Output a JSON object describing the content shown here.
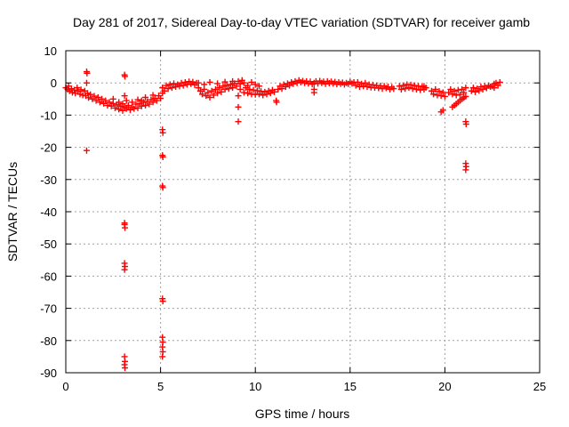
{
  "chart_data": {
    "type": "scatter",
    "title": "Day 281 of 2017, Sidereal Day-to-day VTEC variation (SDTVAR) for receiver gamb",
    "xlabel": "GPS time / hours",
    "ylabel": "SDTVAR / TECUs",
    "xlim": [
      0,
      25
    ],
    "ylim": [
      -90,
      10
    ],
    "xticks": [
      0,
      5,
      10,
      15,
      20,
      25
    ],
    "yticks": [
      10,
      0,
      -10,
      -20,
      -30,
      -40,
      -50,
      -60,
      -70,
      -80,
      -90
    ],
    "xtick_labels": [
      "0",
      "5",
      "10",
      "15",
      "20",
      "25"
    ],
    "ytick_labels": [
      "10",
      "0",
      "-10",
      "-20",
      "-30",
      "-40",
      "-50",
      "-60",
      "-70",
      "-80",
      "-90"
    ],
    "grid": true,
    "marker": "+",
    "color": "#ff0000",
    "series": [
      {
        "name": "SDTVAR",
        "points": [
          [
            0.0,
            -1.5
          ],
          [
            0.1,
            -2.0
          ],
          [
            0.15,
            -1.0
          ],
          [
            0.2,
            -2.5
          ],
          [
            0.3,
            -1.8
          ],
          [
            0.35,
            -3.0
          ],
          [
            0.45,
            -2.2
          ],
          [
            0.5,
            -3.2
          ],
          [
            0.6,
            -1.5
          ],
          [
            0.65,
            -2.6
          ],
          [
            0.75,
            -3.5
          ],
          [
            0.8,
            -2.1
          ],
          [
            0.9,
            -3.8
          ],
          [
            1.0,
            -2.5
          ],
          [
            1.05,
            -4.0
          ],
          [
            1.15,
            -3.2
          ],
          [
            1.2,
            -4.6
          ],
          [
            1.3,
            -3.6
          ],
          [
            1.4,
            -5.0
          ],
          [
            1.5,
            -4.1
          ],
          [
            1.6,
            -5.5
          ],
          [
            1.7,
            -4.5
          ],
          [
            1.8,
            -6.0
          ],
          [
            1.9,
            -5.0
          ],
          [
            2.0,
            -6.4
          ],
          [
            2.1,
            -5.5
          ],
          [
            2.2,
            -7.0
          ],
          [
            2.3,
            -6.0
          ],
          [
            2.4,
            -7.2
          ],
          [
            2.5,
            -6.4
          ],
          [
            2.6,
            -7.8
          ],
          [
            2.7,
            -6.8
          ],
          [
            2.8,
            -8.2
          ],
          [
            2.9,
            -7.2
          ],
          [
            3.0,
            -8.6
          ],
          [
            3.1,
            -7.5
          ],
          [
            3.2,
            -8.0
          ],
          [
            3.3,
            -7.0
          ],
          [
            3.4,
            -8.4
          ],
          [
            3.5,
            -7.5
          ],
          [
            3.6,
            -8.0
          ],
          [
            3.7,
            -6.6
          ],
          [
            3.8,
            -7.8
          ],
          [
            3.9,
            -6.5
          ],
          [
            4.0,
            -7.2
          ],
          [
            4.1,
            -6.0
          ],
          [
            4.2,
            -7.0
          ],
          [
            4.3,
            -5.8
          ],
          [
            4.4,
            -6.6
          ],
          [
            4.5,
            -5.2
          ],
          [
            4.6,
            -6.0
          ],
          [
            4.7,
            -4.8
          ],
          [
            4.8,
            -5.5
          ],
          [
            4.9,
            -4.0
          ],
          [
            5.0,
            -4.8
          ],
          [
            5.1,
            -3.2
          ],
          [
            2.5,
            -5.0
          ],
          [
            2.8,
            -6.0
          ],
          [
            3.2,
            -5.5
          ],
          [
            3.5,
            -6.0
          ],
          [
            3.8,
            -5.2
          ],
          [
            4.2,
            -4.5
          ],
          [
            4.6,
            -3.8
          ],
          [
            4.0,
            -5.5
          ],
          [
            3.0,
            -6.5
          ],
          [
            5.1,
            -1.5
          ],
          [
            5.2,
            -2.5
          ],
          [
            5.3,
            -0.8
          ],
          [
            5.4,
            -1.8
          ],
          [
            5.5,
            -0.5
          ],
          [
            5.6,
            -1.5
          ],
          [
            5.7,
            -0.2
          ],
          [
            5.8,
            -1.2
          ],
          [
            5.9,
            -0.5
          ],
          [
            6.0,
            -1.0
          ],
          [
            6.1,
            0.0
          ],
          [
            6.2,
            -0.8
          ],
          [
            6.3,
            0.2
          ],
          [
            6.4,
            -0.5
          ],
          [
            6.5,
            0.4
          ],
          [
            6.6,
            -0.3
          ],
          [
            6.7,
            0.3
          ],
          [
            6.8,
            -0.6
          ],
          [
            6.9,
            0.0
          ],
          [
            7.0,
            -1.5
          ],
          [
            7.1,
            -2.5
          ],
          [
            7.2,
            -3.5
          ],
          [
            7.3,
            -2.0
          ],
          [
            7.4,
            -4.0
          ],
          [
            7.5,
            -3.0
          ],
          [
            7.6,
            -4.5
          ],
          [
            7.7,
            -2.5
          ],
          [
            7.8,
            -3.8
          ],
          [
            7.9,
            -2.0
          ],
          [
            8.0,
            -3.2
          ],
          [
            8.1,
            -1.5
          ],
          [
            8.2,
            -2.8
          ],
          [
            8.3,
            -1.0
          ],
          [
            8.4,
            -2.0
          ],
          [
            8.5,
            -0.8
          ],
          [
            8.6,
            -1.8
          ],
          [
            8.7,
            -0.5
          ],
          [
            8.8,
            -1.5
          ],
          [
            8.9,
            -0.2
          ],
          [
            9.0,
            -1.0
          ],
          [
            9.1,
            0.5
          ],
          [
            9.2,
            -0.3
          ],
          [
            9.3,
            0.8
          ],
          [
            7.0,
            0.0
          ],
          [
            7.3,
            -0.5
          ],
          [
            7.6,
            0.2
          ],
          [
            8.0,
            -0.2
          ],
          [
            8.4,
            0.3
          ],
          [
            8.8,
            0.5
          ],
          [
            9.2,
            -2.0
          ],
          [
            9.4,
            -3.0
          ],
          [
            9.5,
            -1.5
          ],
          [
            9.6,
            -3.2
          ],
          [
            9.7,
            -2.0
          ],
          [
            9.8,
            -3.5
          ],
          [
            9.9,
            -2.2
          ],
          [
            10.0,
            -3.6
          ],
          [
            10.1,
            -2.4
          ],
          [
            10.2,
            -3.5
          ],
          [
            10.3,
            -2.6
          ],
          [
            10.4,
            -3.8
          ],
          [
            10.5,
            -2.8
          ],
          [
            10.6,
            -3.5
          ],
          [
            10.7,
            -2.5
          ],
          [
            10.8,
            -3.2
          ],
          [
            10.9,
            -2.2
          ],
          [
            11.0,
            -2.8
          ],
          [
            9.4,
            0.0
          ],
          [
            9.6,
            -0.8
          ],
          [
            9.8,
            0.2
          ],
          [
            10.0,
            -0.5
          ],
          [
            10.2,
            -1.0
          ],
          [
            11.2,
            -2.0
          ],
          [
            11.3,
            -1.0
          ],
          [
            11.4,
            -1.8
          ],
          [
            11.5,
            -0.5
          ],
          [
            11.6,
            -1.2
          ],
          [
            11.7,
            -0.2
          ],
          [
            11.8,
            -0.8
          ],
          [
            11.9,
            0.2
          ],
          [
            12.0,
            -0.3
          ],
          [
            12.1,
            0.5
          ],
          [
            12.2,
            0.0
          ],
          [
            12.3,
            0.8
          ],
          [
            12.4,
            0.2
          ],
          [
            12.5,
            0.6
          ],
          [
            12.6,
            0.0
          ],
          [
            12.7,
            0.5
          ],
          [
            12.8,
            -0.2
          ],
          [
            12.9,
            0.4
          ],
          [
            13.0,
            -0.4
          ],
          [
            13.1,
            0.0
          ],
          [
            13.2,
            0.5
          ],
          [
            13.3,
            -0.2
          ],
          [
            13.4,
            0.6
          ],
          [
            13.5,
            0.0
          ],
          [
            13.6,
            0.4
          ],
          [
            13.7,
            -0.3
          ],
          [
            13.8,
            0.5
          ],
          [
            13.9,
            -0.1
          ],
          [
            14.0,
            0.4
          ],
          [
            14.1,
            -0.2
          ],
          [
            14.2,
            0.3
          ],
          [
            14.3,
            -0.4
          ],
          [
            14.4,
            0.2
          ],
          [
            14.5,
            -0.3
          ],
          [
            14.6,
            0.1
          ],
          [
            14.7,
            -0.5
          ],
          [
            14.8,
            0.0
          ],
          [
            14.9,
            -0.3
          ],
          [
            15.0,
            0.3
          ],
          [
            15.1,
            -0.2
          ],
          [
            15.2,
            0.2
          ],
          [
            15.3,
            -0.8
          ],
          [
            15.4,
            0.2
          ],
          [
            15.5,
            -1.2
          ],
          [
            15.6,
            -0.3
          ],
          [
            15.7,
            -1.0
          ],
          [
            15.8,
            0.0
          ],
          [
            15.9,
            -1.2
          ],
          [
            16.0,
            -0.5
          ],
          [
            16.1,
            -1.4
          ],
          [
            16.2,
            -0.6
          ],
          [
            16.3,
            -1.5
          ],
          [
            16.4,
            -0.8
          ],
          [
            16.5,
            -1.6
          ],
          [
            16.6,
            -0.9
          ],
          [
            16.7,
            -1.8
          ],
          [
            16.8,
            -1.0
          ],
          [
            16.9,
            -1.6
          ],
          [
            17.0,
            -1.2
          ],
          [
            17.1,
            -2.0
          ],
          [
            17.2,
            -1.3
          ],
          [
            17.3,
            -1.8
          ],
          [
            17.6,
            -1.0
          ],
          [
            17.7,
            -2.0
          ],
          [
            17.8,
            -0.8
          ],
          [
            17.9,
            -1.8
          ],
          [
            18.0,
            -0.5
          ],
          [
            18.1,
            -1.5
          ],
          [
            18.2,
            -0.6
          ],
          [
            18.3,
            -1.8
          ],
          [
            18.4,
            -0.8
          ],
          [
            18.5,
            -2.0
          ],
          [
            18.6,
            -1.0
          ],
          [
            18.7,
            -2.2
          ],
          [
            18.8,
            -1.2
          ],
          [
            18.9,
            -2.0
          ],
          [
            19.0,
            -1.5
          ],
          [
            19.3,
            -2.5
          ],
          [
            19.4,
            -3.5
          ],
          [
            19.5,
            -2.0
          ],
          [
            19.6,
            -3.8
          ],
          [
            19.7,
            -2.6
          ],
          [
            19.8,
            -4.0
          ],
          [
            19.9,
            -3.0
          ],
          [
            20.0,
            -4.2
          ],
          [
            19.8,
            -9.0
          ],
          [
            19.9,
            -8.5
          ],
          [
            20.2,
            -3.0
          ],
          [
            20.3,
            -2.0
          ],
          [
            20.4,
            -3.5
          ],
          [
            20.5,
            -2.5
          ],
          [
            20.6,
            -3.8
          ],
          [
            20.7,
            -2.2
          ],
          [
            20.8,
            -3.6
          ],
          [
            20.9,
            -2.0
          ],
          [
            21.0,
            -3.0
          ],
          [
            21.1,
            -1.5
          ],
          [
            20.4,
            -7.5
          ],
          [
            20.5,
            -7.0
          ],
          [
            20.6,
            -6.5
          ],
          [
            20.7,
            -6.0
          ],
          [
            20.8,
            -5.5
          ],
          [
            20.9,
            -5.0
          ],
          [
            21.0,
            -4.6
          ],
          [
            21.1,
            -4.2
          ],
          [
            21.4,
            -2.5
          ],
          [
            21.5,
            -1.5
          ],
          [
            21.6,
            -2.8
          ],
          [
            21.7,
            -1.8
          ],
          [
            21.8,
            -2.4
          ],
          [
            21.9,
            -1.2
          ],
          [
            22.0,
            -2.0
          ],
          [
            22.1,
            -1.0
          ],
          [
            22.2,
            -1.6
          ],
          [
            22.3,
            -0.8
          ],
          [
            22.4,
            -1.2
          ],
          [
            22.5,
            -1.0
          ],
          [
            22.6,
            -0.3
          ],
          [
            22.7,
            0.0
          ],
          [
            22.8,
            -0.8
          ],
          [
            22.9,
            0.2
          ],
          [
            22.6,
            -1.5
          ],
          [
            1.1,
            3.5
          ],
          [
            1.12,
            3.0
          ],
          [
            1.1,
            0.0
          ],
          [
            1.1,
            -21.0
          ],
          [
            3.1,
            2.5
          ],
          [
            3.12,
            2.0
          ],
          [
            3.1,
            -4.0
          ],
          [
            3.1,
            -44.0
          ],
          [
            3.12,
            -45.0
          ],
          [
            3.1,
            -43.5
          ],
          [
            3.1,
            -56.0
          ],
          [
            3.12,
            -57.0
          ],
          [
            3.1,
            -58.0
          ],
          [
            3.1,
            -85.0
          ],
          [
            3.12,
            -86.5
          ],
          [
            3.1,
            -87.5
          ],
          [
            3.12,
            -88.5
          ],
          [
            5.1,
            -14.5
          ],
          [
            5.12,
            -15.5
          ],
          [
            5.1,
            -22.5
          ],
          [
            5.12,
            -23.0
          ],
          [
            5.1,
            -32.0
          ],
          [
            5.12,
            -32.5
          ],
          [
            5.1,
            -67.0
          ],
          [
            5.12,
            -67.8
          ],
          [
            5.1,
            -79.0
          ],
          [
            5.12,
            -80.5
          ],
          [
            5.1,
            -82.0
          ],
          [
            5.12,
            -83.5
          ],
          [
            5.1,
            -85.0
          ],
          [
            9.1,
            -4.0
          ],
          [
            9.1,
            -7.5
          ],
          [
            9.1,
            -12.0
          ],
          [
            11.1,
            -5.5
          ],
          [
            11.12,
            -6.0
          ],
          [
            13.1,
            -2.0
          ],
          [
            13.1,
            -3.0
          ],
          [
            18.9,
            -1.0
          ],
          [
            21.1,
            -12.0
          ],
          [
            21.12,
            -12.8
          ],
          [
            21.1,
            -25.0
          ],
          [
            21.12,
            -26.0
          ],
          [
            21.1,
            -27.0
          ]
        ]
      }
    ]
  }
}
